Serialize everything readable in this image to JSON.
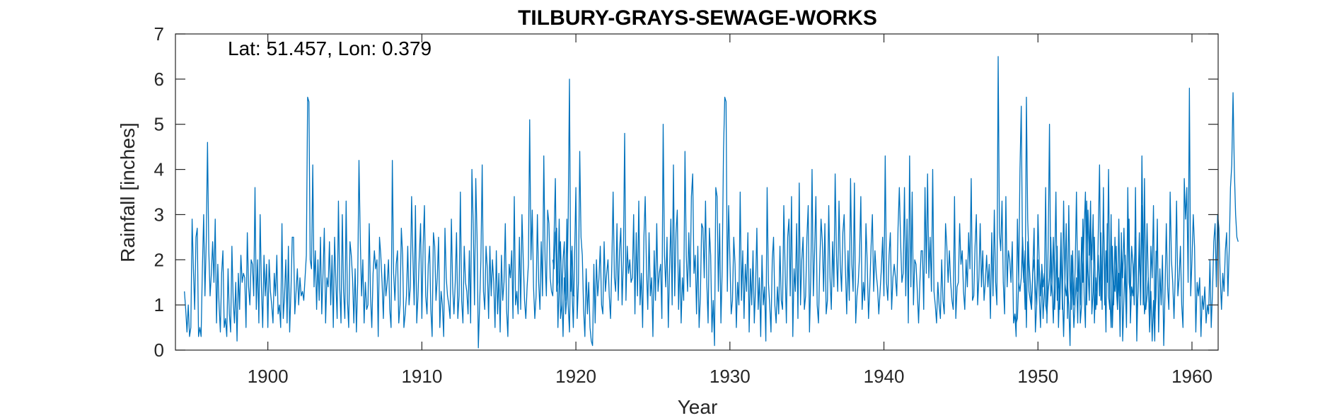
{
  "chart_data": {
    "type": "line",
    "title": "TILBURY-GRAYS-SEWAGE-WORKS",
    "annotation": "Lat: 51.457, Lon: 0.379",
    "xlabel": "Year",
    "ylabel": "Rainfall [inches]",
    "xlim": [
      1894.0,
      1961.7
    ],
    "ylim": [
      0,
      7
    ],
    "xticks": [
      1900,
      1910,
      1920,
      1930,
      1940,
      1950,
      1960
    ],
    "yticks": [
      0,
      1,
      2,
      3,
      4,
      5,
      6,
      7
    ],
    "grid": false,
    "series_color": "#0072BD",
    "axis_color": "#262626",
    "series": [
      {
        "segments": [
          {
            "start": 1894.583,
            "values": [
              1.3,
              0.9,
              0.4,
              1.0,
              0.3,
              0.5,
              2.9,
              1.8,
              0.9,
              2.5,
              2.7,
              0.3,
              0.5,
              0.3,
              1.8,
              3.0,
              1.2,
              2.4,
              4.6,
              2.2,
              1.2,
              1.7,
              2.4,
              1.5,
              2.9,
              0.6,
              1.9,
              1.0,
              0.4,
              1.7,
              2.2,
              0.5,
              0.7,
              0.3,
              1.8,
              0.8,
              0.4,
              2.3,
              1.1,
              0.6,
              1.5,
              0.2,
              1.7,
              0.9,
              2.1,
              1.5,
              1.7,
              1.6,
              0.5,
              2.6,
              1.4,
              1.0,
              2.0,
              1.9,
              1.2,
              3.6,
              0.9,
              2.0,
              0.6,
              3.0,
              1.4,
              0.5,
              2.1,
              1.2,
              1.9,
              0.5,
              2.0,
              1.3,
              1.0,
              0.6,
              1.7,
              1.2,
              2.1,
              0.8,
              1.0,
              0.5,
              2.8,
              0.7,
              1.2,
              2.0,
              0.6,
              2.3,
              0.4,
              1.3,
              2.5,
              2.5,
              0.8,
              1.3,
              1.8,
              1.0,
              1.6,
              1.2,
              1.3,
              1.1,
              1.6,
              2.1,
              5.6,
              5.5,
              2.0,
              1.8,
              4.1,
              1.4,
              2.2,
              0.9,
              2.0,
              1.1,
              2.5,
              0.8,
              1.7,
              2.7,
              0.6,
              1.6,
              1.4,
              2.4,
              1.0,
              2.1,
              0.5,
              2.5,
              1.5,
              0.7,
              3.3,
              1.4,
              0.6,
              3.0,
              1.3,
              0.7,
              3.3,
              1.1,
              0.5,
              2.4,
              2.1,
              1.6,
              0.6,
              1.8,
              0.4,
              1.5,
              4.2,
              2.5,
              1.2,
              2.0,
              0.6,
              1.5,
              0.9,
              1.0,
              2.8,
              1.2,
              0.5,
              1.7,
              2.2,
              1.8,
              2.0,
              0.3,
              2.5,
              2.1,
              1.5,
              0.7,
              1.9,
              1.2,
              1.5,
              2.0,
              0.9,
              0.5,
              4.2,
              1.7,
              1.1,
              1.9,
              2.2,
              0.6,
              1.0,
              2.7,
              2.1,
              0.5,
              0.8,
              1.2,
              2.3,
              1.0,
              1.4,
              3.4,
              2.1,
              1.0,
              3.2,
              0.6,
              1.2,
              2.1,
              2.8,
              0.7,
              2.3,
              3.2,
              1.2,
              0.8,
              1.9,
              2.3,
              0.9,
              0.3,
              2.6,
              2.3,
              1.1,
              1.6,
              2.5,
              0.5,
              1.3,
              1.0,
              0.3,
              2.7,
              1.6,
              1.2,
              1.0,
              0.7,
              2.9,
              1.4,
              0.8,
              1.5,
              2.6,
              0.7,
              1.2,
              3.5,
              1.1,
              0.6,
              2.3,
              1.5,
              1.3,
              0.8,
              2.2,
              0.6,
              4.0,
              2.8,
              1.0,
              3.8,
              2.5,
              0.05,
              1.0,
              2.0,
              4.1,
              1.3,
              0.9,
              2.3,
              1.8,
              0.7,
              2.3,
              1.2,
              2.0,
              1.5,
              0.5,
              2.2,
              0.8,
              1.7,
              0.4,
              2.1,
              1.1,
              1.5,
              2.8,
              0.9,
              0.3,
              1.9,
              1.6,
              2.2,
              0.7,
              3.4,
              1.0,
              1.3,
              0.8,
              2.5,
              0.9,
              3.0,
              2.0,
              1.1,
              0.7,
              1.4,
              1.9,
              5.1,
              2.0,
              3.1,
              1.4,
              0.7,
              1.2,
              3.0,
              1.5,
              0.9,
              2.4,
              1.2,
              4.3,
              2.0,
              1.2,
              3.1,
              2.8,
              1.6,
              1.3,
              1.2,
              2.5,
              3.8,
              1.3,
              1.5,
              2.9,
              0.7,
              1.0,
              2.0,
              2.4,
              0.8,
              1.2,
              2.9,
              6.0,
              1.3,
              2.3,
              1.2,
              1.2
            ]
          },
          {
            "start": 1918.5,
            "values": [
              2.0,
              1.8,
              2.6,
              2.7,
              0.5,
              1.5,
              2.4,
              1.3,
              0.3,
              1.6,
              1.1,
              2.9,
              1.0,
              0.4,
              2.2,
              1.3,
              0.5,
              2.1,
              3.6,
              0.7,
              1.5,
              4.4,
              2.5,
              2.1,
              0.9,
              0.3,
              1.8,
              0.8,
              1.5,
              0.5,
              0.2,
              0.1,
              1.9,
              0.6,
              2.0,
              1.2,
              1.6,
              2.3,
              1.0,
              0.8,
              2.4,
              1.3,
              1.7,
              2.0,
              1.2,
              0.7,
              1.9,
              3.5,
              1.6,
              1.3,
              2.8,
              1.1,
              2.2,
              2.7,
              1.0,
              2.0,
              4.8,
              1.1,
              2.3,
              1.7,
              2.0,
              1.5,
              1.6,
              3.0,
              0.8,
              2.6,
              1.2,
              3.3,
              1.0,
              1.7,
              0.5,
              2.5,
              3.4,
              1.8,
              0.9,
              2.6,
              1.2,
              1.6,
              0.3,
              2.2,
              1.1,
              2.8,
              1.3,
              1.7,
              1.9,
              0.7,
              5.0,
              2.1,
              1.4,
              2.5,
              0.5,
              1.8,
              2.9,
              1.0,
              4.1,
              1.2,
              2.6,
              3.1,
              0.9,
              2.0,
              0.6,
              1.6,
              1.1,
              4.4,
              2.1,
              1.3,
              2.6,
              1.4,
              3.4,
              3.9,
              1.7,
              2.1,
              0.8,
              2.3,
              0.5,
              1.2,
              2.8,
              2.7,
              1.6,
              3.3,
              1.5,
              0.6,
              2.7,
              2.1,
              0.4,
              1.1,
              0.1,
              3.6,
              3.4,
              1.3,
              2.8,
              0.6,
              1.8,
              4.4,
              5.6,
              5.5,
              1.3,
              3.2,
              2.0,
              0.8,
              1.1,
              2.5,
              1.9,
              0.5,
              1.5,
              1.0,
              3.5,
              1.1,
              2.2,
              0.7,
              1.9,
              1.3,
              2.6,
              0.4,
              1.8,
              1.0,
              2.2,
              0.6,
              1.4,
              2.7,
              0.9,
              1.6,
              0.3,
              2.1,
              1.0,
              1.4,
              0.2,
              3.6,
              1.5,
              1.0,
              0.4,
              2.0,
              2.5,
              1.0,
              0.6,
              1.4,
              0.8,
              2.3,
              1.1,
              0.9,
              3.2,
              1.8,
              0.6,
              2.5,
              2.9,
              1.2,
              3.4,
              0.3,
              1.8,
              1.3,
              2.8,
              0.7,
              3.7,
              1.0,
              2.0,
              2.5,
              0.9,
              1.2,
              2.5,
              3.2,
              0.4,
              1.6,
              4.0,
              1.2,
              2.2,
              3.4,
              1.0,
              0.6,
              1.9,
              2.9,
              2.4,
              1.3,
              2.8,
              0.8,
              1.1,
              3.2,
              1.6,
              0.9,
              2.4,
              1.4,
              3.9,
              2.1,
              1.3,
              3.3,
              1.9,
              1.3,
              2.6,
              3.0,
              1.8,
              0.8,
              2.2,
              1.1,
              3.8,
              1.9,
              1.3,
              3.7,
              0.6,
              1.2,
              1.5,
              2.1,
              3.4,
              0.9,
              1.5,
              1.1,
              2.8,
              1.9,
              0.7,
              1.4,
              2.3,
              3.0,
              1.3,
              2.2,
              1.7,
              1.4,
              0.8,
              1.3,
              1.8,
              2.5,
              1.2,
              4.3,
              1.5,
              1.1,
              2.1,
              2.6,
              0.9,
              1.6,
              1.9,
              1.6,
              1.2,
              2.7,
              3.6,
              2.4,
              1.5,
              1.7,
              3.6,
              1.2,
              2.9,
              0.6,
              4.3,
              1.4,
              3.5,
              1.0,
              2.0,
              1.9,
              1.3,
              0.6,
              1.5,
              2.2,
              2.2,
              0.9,
              3.6,
              1.7,
              3.9,
              1.6,
              2.5,
              1.3,
              4.0,
              1.3,
              1.0,
              0.6,
              1.5,
              1.0,
              0.7,
              2.0,
              1.1,
              0.8,
              2.8,
              2.3,
              1.5,
              2.2,
              1.5,
              1.1,
              0.9,
              3.4,
              0.7,
              1.4,
              1.5,
              2.8,
              1.9,
              2.2,
              1.3,
              0.9,
              2.0,
              1.4,
              2.6,
              1.8,
              3.8,
              1.1,
              1.2,
              2.3,
              3.0,
              1.0,
              1.6,
              2.8,
              1.4,
              2.2,
              1.1,
              1.5,
              2.1,
              1.4,
              1.9,
              0.7,
              2.6,
              1.2,
              3.1,
              1.5,
              1.0,
              6.5,
              2.6,
              2.2,
              3.3,
              1.5,
              0.8,
              3.4,
              1.4,
              2.2,
              2.0,
              1.5,
              2.4,
              0.6,
              0.8,
              0.3,
              2.9,
              1.5,
              4.0,
              5.4,
              2.0,
              1.5,
              2.2,
              0.5,
              2.4,
              1.3,
              1.1,
              0.9,
              1.8,
              2.7,
              0.4,
              1.0,
              2.0,
              1.2,
              0.5,
              1.9,
              1.4,
              1.7,
              1.0,
              0.8,
              1.3,
              1.6,
              2.5,
              1.4,
              0.6,
              1.8,
              3.5,
              1.1,
              1.6,
              0.9,
              2.1,
              1.3,
              0.3,
              1.5,
              1.2,
              1.5,
              1.0,
              0.1,
              2.1,
              1.3,
              0.5,
              1.1,
              1.6,
              0.6,
              2.2,
              1.0,
              2.5,
              1.5,
              2.7,
              3.5,
              1.0,
              3.1,
              2.1,
              3.3,
              0.8,
              1.3,
              2.5,
              0.9,
              1.5,
              2.1,
              1.2,
              2.6,
              0.9,
              3.6,
              1.0,
              2.2,
              1.5,
              4.0,
              1.2,
              0.5,
              2.3,
              1.0,
              2.5,
              1.4,
              0.9,
              2.9,
              1.2,
              2.3,
              1.6,
              2.7,
              1.5,
              0.5,
              3.6,
              1.5,
              1.2,
              2.3,
              1.9,
              1.0,
              3.6,
              0.6,
              1.3,
              2.3,
              1.1,
              3.2,
              1.0,
              3.8,
              0.9,
              1.2,
              1.6,
              0.4,
              1.3,
              0.2,
              1.1,
              0.2,
              2.2
            ]
          },
          {
            "start": 1948.5,
            "values": [
              0.8,
              0.6,
              0.7,
              1.5,
              1.3,
              1.6,
              2.5,
              1.8,
              0.9,
              5.6,
              2.9,
              2.0,
              1.5,
              0.9,
              1.7,
              2.0,
              1.4,
              1.0,
              3.0,
              1.9,
              1.2,
              1.8,
              0.7,
              1.3,
              3.6,
              0.6,
              2.4,
              5.0,
              1.2,
              1.5,
              2.5,
              0.9,
              1.7,
              2.3,
              0.5,
              1.5,
              2.6,
              0.9,
              3.3,
              1.5,
              2.8,
              0.7,
              3.2,
              1.4,
              0.9,
              2.2,
              1.0,
              1.8,
              3.5,
              1.3,
              2.2,
              0.6,
              1.0,
              2.9,
              1.2,
              0.5,
              3.3,
              1.8,
              1.1,
              2.8,
              2.0,
              3.0,
              0.6,
              1.6,
              1.0,
              2.6,
              4.1,
              1.1,
              1.6,
              3.1,
              1.7,
              0.4,
              2.8,
              1.2,
              0.9,
              3.0,
              0.5,
              1.5,
              1.3,
              2.3,
              0.9,
              1.7,
              0.3,
              2.6,
              0.2,
              1.2,
              2.1,
              0.8,
              2.7,
              2.9,
              0.6,
              1.4,
              1.2,
              1.9,
              2.5,
              0.2,
              1.4,
              2.6,
              1.0,
              4.3,
              2.1,
              0.8,
              1.1,
              2.8,
              1.5,
              0.5,
              2.3,
              1.6,
              3.2,
              0.7,
              1.2,
              2.9,
              0.4,
              1.8,
              1.0,
              2.1,
              0.1,
              1.3,
              2.8,
              1.4,
              0.9,
              3.5,
              2.0,
              1.5,
              0.7,
              1.7,
              3.3,
              1.2,
              1.6,
              2.3,
              1.0,
              0.5,
              3.8,
              2.9,
              3.6,
              1.5,
              5.8,
              1.2,
              2.0,
              3.0,
              2.3,
              0.4,
              1.5,
              1.2,
              1.6,
              0.3,
              1.2,
              0.9,
              1.4,
              0.6,
              1.0,
              0.8,
              2.0,
              0.5,
              1.3,
              2.4,
              2.8,
              1.4,
              3.0,
              2.7,
              1.6,
              0.9,
              1.7,
              1.3,
              2.2,
              2.6,
              1.2,
              2.2,
              3.6,
              4.1,
              5.7,
              4.0,
              3.0,
              2.5,
              2.4
            ]
          }
        ]
      }
    ]
  }
}
